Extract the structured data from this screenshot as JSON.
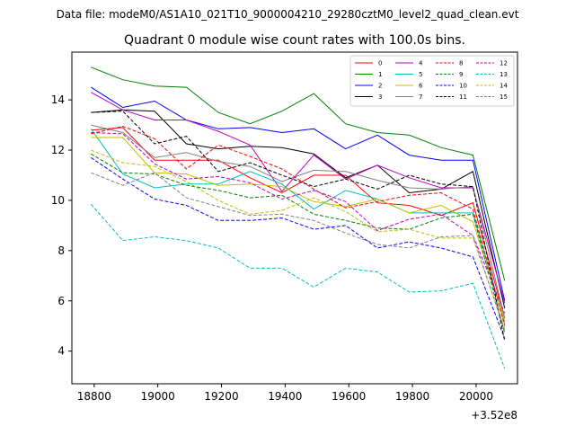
{
  "figure": {
    "suptitle": "Data file: modeM0/AS1A10_021T10_9000004210_29280cztM0_level2_quad_clean.evt"
  },
  "chart_data": {
    "type": "line",
    "title": "Quadrant 0 module wise count rates with 100.0s bins.",
    "xlabel": "",
    "ylabel": "",
    "x_offset_label": "+3.52e8",
    "xlim": [
      18730,
      20130
    ],
    "ylim": [
      2.7,
      15.9
    ],
    "xticks": [
      18800,
      19000,
      19200,
      19400,
      19600,
      19800,
      20000
    ],
    "yticks": [
      4,
      6,
      8,
      10,
      12,
      14
    ],
    "grid": false,
    "legend_position": "top-right",
    "legend_columns": 4,
    "x": [
      18790,
      18890,
      18990,
      19090,
      19190,
      19290,
      19390,
      19490,
      19590,
      19690,
      19790,
      19890,
      19990,
      20090
    ],
    "series": [
      {
        "name": "0",
        "color": "#ff0000",
        "dash": "solid",
        "values": [
          12.8,
          12.9,
          11.6,
          11.6,
          11.6,
          10.9,
          10.3,
          11.0,
          11.0,
          9.9,
          9.8,
          9.4,
          9.9,
          5.3
        ]
      },
      {
        "name": "1",
        "color": "#008000",
        "dash": "solid",
        "values": [
          15.3,
          14.8,
          14.55,
          14.5,
          13.5,
          13.05,
          13.55,
          14.25,
          13.05,
          12.7,
          12.6,
          12.1,
          11.8,
          6.8
        ]
      },
      {
        "name": "2",
        "color": "#0000ff",
        "dash": "solid",
        "values": [
          14.5,
          13.7,
          13.95,
          13.2,
          12.85,
          12.9,
          12.7,
          12.85,
          12.05,
          12.6,
          11.8,
          11.6,
          11.6,
          6.0
        ]
      },
      {
        "name": "3",
        "color": "#000000",
        "dash": "solid",
        "values": [
          13.5,
          13.6,
          13.55,
          12.25,
          12.05,
          12.15,
          12.1,
          11.85,
          10.9,
          11.4,
          10.3,
          10.45,
          11.15,
          5.7
        ]
      },
      {
        "name": "4",
        "color": "#bf00bf",
        "dash": "solid",
        "values": [
          14.3,
          13.6,
          13.2,
          13.2,
          12.75,
          12.2,
          10.35,
          11.8,
          10.85,
          11.4,
          10.9,
          10.5,
          10.5,
          5.9
        ]
      },
      {
        "name": "5",
        "color": "#00bfbf",
        "dash": "solid",
        "values": [
          12.85,
          11.05,
          10.5,
          10.65,
          10.65,
          11.15,
          10.65,
          9.65,
          10.4,
          10.05,
          9.5,
          9.5,
          9.5,
          5.1
        ]
      },
      {
        "name": "6",
        "color": "#bfbf00",
        "dash": "solid",
        "values": [
          12.5,
          12.5,
          11.1,
          11.05,
          10.6,
          10.65,
          10.55,
          9.95,
          9.75,
          10.05,
          9.5,
          9.8,
          9.15,
          5.2
        ]
      },
      {
        "name": "7",
        "color": "#808080",
        "dash": "solid",
        "values": [
          13.0,
          12.7,
          11.7,
          11.9,
          11.55,
          11.35,
          10.75,
          11.2,
          11.15,
          10.8,
          10.5,
          10.45,
          10.55,
          5.3
        ]
      },
      {
        "name": "8",
        "color": "#ff0000",
        "dash": "dashed",
        "values": [
          12.65,
          12.95,
          12.45,
          11.25,
          12.2,
          11.75,
          11.25,
          10.45,
          9.7,
          9.95,
          10.2,
          10.3,
          9.65,
          5.0
        ]
      },
      {
        "name": "9",
        "color": "#008000",
        "dash": "dashed",
        "values": [
          11.85,
          11.1,
          11.05,
          10.6,
          10.4,
          10.1,
          10.2,
          9.45,
          9.2,
          8.9,
          8.85,
          9.3,
          9.45,
          4.7
        ]
      },
      {
        "name": "10",
        "color": "#0000ff",
        "dash": "dashed",
        "values": [
          11.7,
          10.85,
          10.05,
          9.8,
          9.2,
          9.2,
          9.3,
          8.85,
          9.0,
          8.1,
          8.35,
          8.1,
          7.75,
          4.5
        ]
      },
      {
        "name": "11",
        "color": "#000000",
        "dash": "dashed",
        "values": [
          13.5,
          13.55,
          12.25,
          12.55,
          11.15,
          11.5,
          11.0,
          10.55,
          10.85,
          10.45,
          11.0,
          10.65,
          10.55,
          4.4
        ]
      },
      {
        "name": "12",
        "color": "#bf00bf",
        "dash": "dashed",
        "values": [
          12.7,
          12.65,
          11.45,
          10.85,
          10.95,
          10.7,
          10.05,
          10.4,
          9.95,
          8.8,
          9.25,
          9.45,
          8.6,
          5.5
        ]
      },
      {
        "name": "13",
        "color": "#00bfbf",
        "dash": "dashed",
        "values": [
          9.85,
          8.4,
          8.55,
          8.4,
          8.1,
          7.3,
          7.3,
          6.55,
          7.3,
          7.15,
          6.35,
          6.4,
          6.7,
          3.3
        ]
      },
      {
        "name": "14",
        "color": "#bfbf00",
        "dash": "dashed",
        "values": [
          12.0,
          11.5,
          11.35,
          10.75,
          10.0,
          9.45,
          9.6,
          10.1,
          9.55,
          8.75,
          8.85,
          8.5,
          8.5,
          4.9
        ]
      },
      {
        "name": "15",
        "color": "#808080",
        "dash": "dashed",
        "values": [
          11.1,
          10.6,
          11.1,
          10.1,
          9.75,
          9.4,
          9.45,
          9.2,
          8.7,
          8.25,
          8.1,
          8.55,
          8.6,
          4.8
        ]
      }
    ]
  }
}
